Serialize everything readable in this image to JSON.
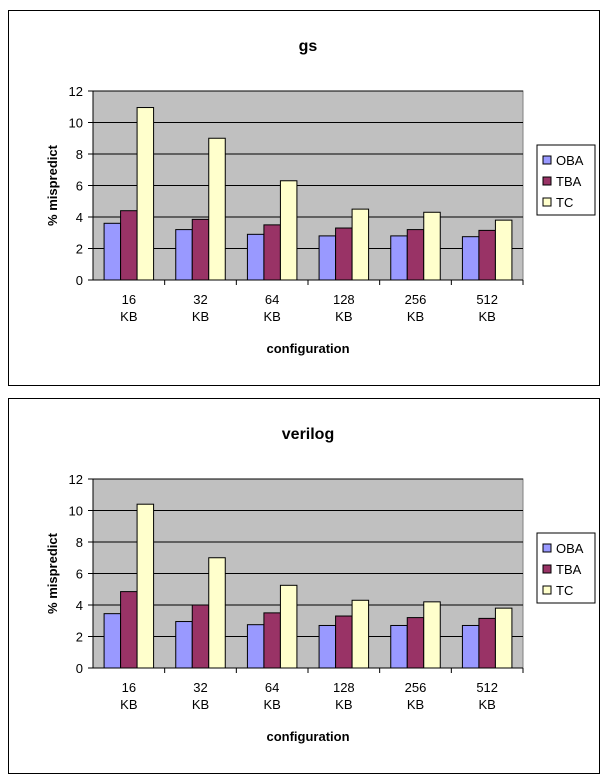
{
  "chart_data": [
    {
      "type": "bar",
      "title": "gs",
      "xlabel": "configuration",
      "ylabel": "% mispredict",
      "ylim": [
        0,
        12
      ],
      "yticks": [
        0,
        2,
        4,
        6,
        8,
        10,
        12
      ],
      "grid": true,
      "legend": "right",
      "categories": [
        [
          "16",
          "KB"
        ],
        [
          "32",
          "KB"
        ],
        [
          "64",
          "KB"
        ],
        [
          "128",
          "KB"
        ],
        [
          "256",
          "KB"
        ],
        [
          "512",
          "KB"
        ]
      ],
      "series": [
        {
          "name": "OBA",
          "color": "#9999ff",
          "values": [
            3.6,
            3.2,
            2.9,
            2.8,
            2.8,
            2.75
          ]
        },
        {
          "name": "TBA",
          "color": "#993366",
          "values": [
            4.4,
            3.85,
            3.5,
            3.3,
            3.2,
            3.15
          ]
        },
        {
          "name": "TC",
          "color": "#ffffcc",
          "values": [
            10.95,
            9.0,
            6.3,
            4.5,
            4.3,
            3.8
          ]
        }
      ]
    },
    {
      "type": "bar",
      "title": "verilog",
      "xlabel": "configuration",
      "ylabel": "% mispredict",
      "ylim": [
        0,
        12
      ],
      "yticks": [
        0,
        2,
        4,
        6,
        8,
        10,
        12
      ],
      "grid": true,
      "legend": "right",
      "categories": [
        [
          "16",
          "KB"
        ],
        [
          "32",
          "KB"
        ],
        [
          "64",
          "KB"
        ],
        [
          "128",
          "KB"
        ],
        [
          "256",
          "KB"
        ],
        [
          "512",
          "KB"
        ]
      ],
      "series": [
        {
          "name": "OBA",
          "color": "#9999ff",
          "values": [
            3.45,
            2.95,
            2.75,
            2.7,
            2.7,
            2.7
          ]
        },
        {
          "name": "TBA",
          "color": "#993366",
          "values": [
            4.85,
            4.0,
            3.5,
            3.3,
            3.2,
            3.15
          ]
        },
        {
          "name": "TC",
          "color": "#ffffcc",
          "values": [
            10.4,
            7.0,
            5.25,
            4.3,
            4.2,
            3.8
          ]
        }
      ]
    }
  ]
}
